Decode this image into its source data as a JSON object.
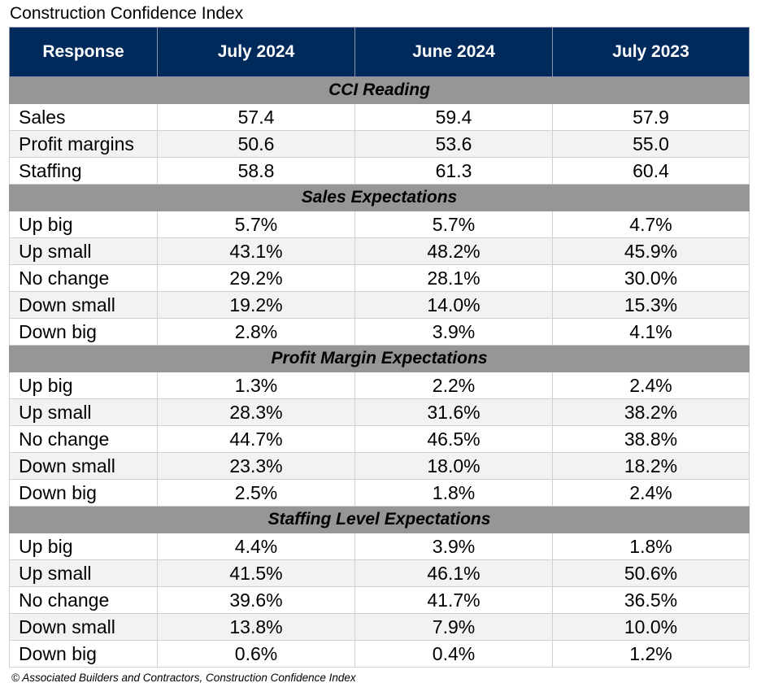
{
  "chart_data": {
    "type": "table",
    "title": "Construction Confidence Index",
    "columns": [
      "Response",
      "July 2024",
      "June 2024",
      "July 2023"
    ],
    "sections": [
      {
        "name": "CCI Reading",
        "rows": [
          {
            "label": "Sales",
            "values": [
              "57.4",
              "59.4",
              "57.9"
            ]
          },
          {
            "label": "Profit margins",
            "values": [
              "50.6",
              "53.6",
              "55.0"
            ]
          },
          {
            "label": "Staffing",
            "values": [
              "58.8",
              "61.3",
              "60.4"
            ]
          }
        ]
      },
      {
        "name": "Sales Expectations",
        "rows": [
          {
            "label": "Up big",
            "values": [
              "5.7%",
              "5.7%",
              "4.7%"
            ]
          },
          {
            "label": "Up small",
            "values": [
              "43.1%",
              "48.2%",
              "45.9%"
            ]
          },
          {
            "label": "No change",
            "values": [
              "29.2%",
              "28.1%",
              "30.0%"
            ]
          },
          {
            "label": "Down small",
            "values": [
              "19.2%",
              "14.0%",
              "15.3%"
            ]
          },
          {
            "label": "Down big",
            "values": [
              "2.8%",
              "3.9%",
              "4.1%"
            ]
          }
        ]
      },
      {
        "name": "Profit Margin Expectations",
        "rows": [
          {
            "label": "Up big",
            "values": [
              "1.3%",
              "2.2%",
              "2.4%"
            ]
          },
          {
            "label": "Up small",
            "values": [
              "28.3%",
              "31.6%",
              "38.2%"
            ]
          },
          {
            "label": "No change",
            "values": [
              "44.7%",
              "46.5%",
              "38.8%"
            ]
          },
          {
            "label": "Down small",
            "values": [
              "23.3%",
              "18.0%",
              "18.2%"
            ]
          },
          {
            "label": "Down big",
            "values": [
              "2.5%",
              "1.8%",
              "2.4%"
            ]
          }
        ]
      },
      {
        "name": "Staffing Level Expectations",
        "rows": [
          {
            "label": "Up big",
            "values": [
              "4.4%",
              "3.9%",
              "1.8%"
            ]
          },
          {
            "label": "Up small",
            "values": [
              "41.5%",
              "46.1%",
              "50.6%"
            ]
          },
          {
            "label": "No change",
            "values": [
              "39.6%",
              "41.7%",
              "36.5%"
            ]
          },
          {
            "label": "Down small",
            "values": [
              "13.8%",
              "7.9%",
              "10.0%"
            ]
          },
          {
            "label": "Down big",
            "values": [
              "0.6%",
              "0.4%",
              "1.2%"
            ]
          }
        ]
      }
    ]
  },
  "source": "© Associated Builders and Contractors, Construction Confidence Index",
  "colors": {
    "header_bg": "#002a5c",
    "section_bg": "#969696",
    "stripe_bg": "#f2f2f2"
  }
}
